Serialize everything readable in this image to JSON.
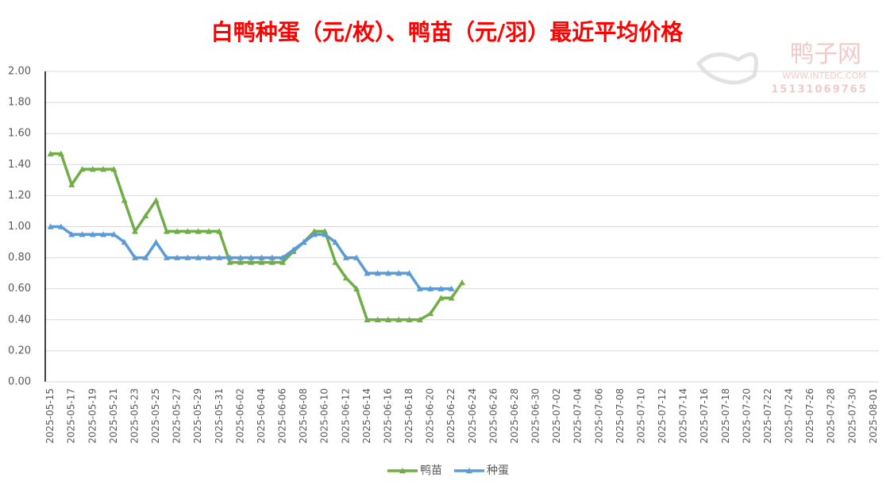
{
  "chart_data": {
    "type": "line",
    "title": "白鸭种蛋（元/枚）、鸭苗（元/羽）最近平均价格",
    "watermark": {
      "brand": "鸭子网",
      "url": "WWW.INTEDC.COM",
      "phone": "15131069765"
    },
    "categories": [
      "2025-05-15",
      null,
      "2025-05-17",
      null,
      "2025-05-19",
      null,
      "2025-05-21",
      null,
      "2025-05-23",
      null,
      "2025-05-25",
      null,
      "2025-05-27",
      null,
      "2025-05-29",
      null,
      "2025-05-31",
      null,
      "2025-06-02",
      null,
      "2025-06-04",
      null,
      "2025-06-06",
      null,
      "2025-06-08",
      null,
      "2025-06-10",
      null,
      "2025-06-12",
      null,
      "2025-06-14",
      null,
      "2025-06-16",
      null,
      "2025-06-18",
      null,
      "2025-06-20",
      null,
      "2025-06-22",
      null,
      "2025-06-24",
      null,
      "2025-06-26",
      null,
      "2025-06-28",
      null,
      "2025-06-30",
      null,
      "2025-07-02",
      null,
      "2025-07-04",
      null,
      "2025-07-06",
      null,
      "2025-07-08",
      null,
      "2025-07-10",
      null,
      "2025-07-12",
      null,
      "2025-07-14",
      null,
      "2025-07-16",
      null,
      "2025-07-18",
      null,
      "2025-07-20",
      null,
      "2025-07-22",
      null,
      "2025-07-24",
      null,
      "2025-07-26",
      null,
      "2025-07-28",
      null,
      "2025-07-30",
      null,
      "2025-08-01"
    ],
    "series": [
      {
        "name": "鸭苗",
        "color": "#70ad47",
        "values": [
          1.47,
          1.47,
          1.27,
          1.37,
          1.37,
          1.37,
          1.37,
          1.17,
          0.97,
          1.07,
          1.17,
          0.97,
          0.97,
          0.97,
          0.97,
          0.97,
          0.97,
          0.77,
          0.77,
          0.77,
          0.77,
          0.77,
          0.77,
          0.84,
          0.9,
          0.97,
          0.97,
          0.77,
          0.67,
          0.6,
          0.4,
          0.4,
          0.4,
          0.4,
          0.4,
          0.4,
          0.44,
          0.54,
          0.54,
          0.64,
          null,
          null,
          null,
          null,
          null,
          null,
          null,
          null,
          null,
          null,
          null,
          null,
          null,
          null,
          null,
          null,
          null,
          null,
          null,
          null,
          null,
          null,
          null,
          null,
          null,
          null,
          null,
          null,
          null,
          null,
          null,
          null,
          null,
          null,
          null,
          null,
          null,
          null,
          null
        ]
      },
      {
        "name": "种蛋",
        "color": "#5b9bd5",
        "values": [
          1.0,
          1.0,
          0.95,
          0.95,
          0.95,
          0.95,
          0.95,
          0.9,
          0.8,
          0.8,
          0.9,
          0.8,
          0.8,
          0.8,
          0.8,
          0.8,
          0.8,
          0.8,
          0.8,
          0.8,
          0.8,
          0.8,
          0.8,
          0.85,
          0.9,
          0.95,
          0.95,
          0.9,
          0.8,
          0.8,
          0.7,
          0.7,
          0.7,
          0.7,
          0.7,
          0.6,
          0.6,
          0.6,
          0.6,
          null,
          null,
          null,
          null,
          null,
          null,
          null,
          null,
          null,
          null,
          null,
          null,
          null,
          null,
          null,
          null,
          null,
          null,
          null,
          null,
          null,
          null,
          null,
          null,
          null,
          null,
          null,
          null,
          null,
          null,
          null,
          null,
          null,
          null,
          null,
          null,
          null,
          null,
          null,
          null
        ]
      }
    ],
    "ylim": [
      0,
      2
    ],
    "yticks": [
      {
        "value": 0,
        "label": "0.00"
      },
      {
        "value": 0.2,
        "label": "0.20"
      },
      {
        "value": 0.4,
        "label": "0.40"
      },
      {
        "value": 0.6,
        "label": "0.60"
      },
      {
        "value": 0.8,
        "label": "0.80"
      },
      {
        "value": 1,
        "label": "1.00"
      },
      {
        "value": 1.2,
        "label": "1.20"
      },
      {
        "value": 1.4,
        "label": "1.40"
      },
      {
        "value": 1.6,
        "label": "1.60"
      },
      {
        "value": 1.8,
        "label": "1.80"
      },
      {
        "value": 2,
        "label": "2.00"
      }
    ],
    "grid": true,
    "legend": "bottom"
  }
}
